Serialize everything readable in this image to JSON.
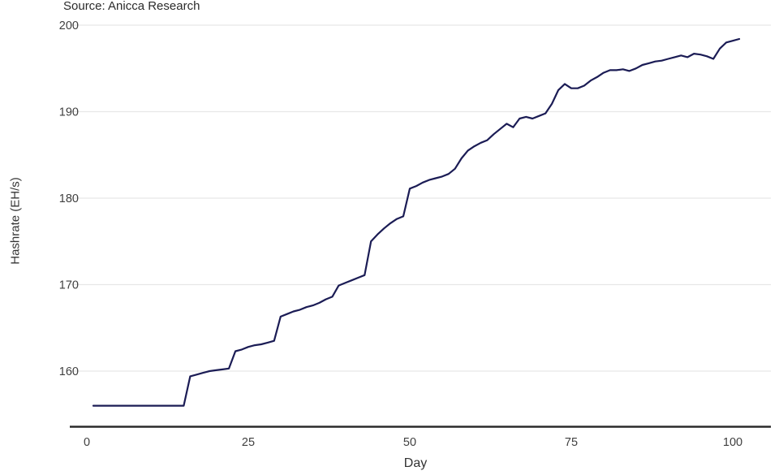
{
  "header": {
    "source_label": "Source: Anicca Research"
  },
  "colors": {
    "background": "#ffffff",
    "grid": "#e7e7e7",
    "axis_line": "#2b2b2b",
    "tick_text": "#404040",
    "line": "#1b1c55"
  },
  "chart_data": {
    "type": "line",
    "title": "",
    "xlabel": "Day",
    "ylabel": "Hashrate (EH/s)",
    "x_ticks": [
      0,
      25,
      50,
      75,
      100
    ],
    "y_ticks": [
      160,
      170,
      180,
      190,
      200
    ],
    "xlim": [
      0,
      100
    ],
    "ylim": [
      155,
      200
    ],
    "grid": "horizontal-only",
    "legend": "none",
    "points": [
      [
        1,
        156.0
      ],
      [
        15,
        156.0
      ],
      [
        16,
        159.4
      ],
      [
        17,
        159.6
      ],
      [
        18,
        159.8
      ],
      [
        19,
        160.0
      ],
      [
        20,
        160.1
      ],
      [
        21,
        160.2
      ],
      [
        22,
        160.3
      ],
      [
        23,
        162.3
      ],
      [
        24,
        162.5
      ],
      [
        25,
        162.8
      ],
      [
        26,
        163.0
      ],
      [
        27,
        163.1
      ],
      [
        28,
        163.3
      ],
      [
        29,
        163.5
      ],
      [
        30,
        166.3
      ],
      [
        31,
        166.6
      ],
      [
        32,
        166.9
      ],
      [
        33,
        167.1
      ],
      [
        34,
        167.4
      ],
      [
        35,
        167.6
      ],
      [
        36,
        167.9
      ],
      [
        37,
        168.3
      ],
      [
        38,
        168.6
      ],
      [
        39,
        169.9
      ],
      [
        40,
        170.2
      ],
      [
        41,
        170.5
      ],
      [
        42,
        170.8
      ],
      [
        43,
        171.1
      ],
      [
        44,
        175.0
      ],
      [
        45,
        175.8
      ],
      [
        46,
        176.5
      ],
      [
        47,
        177.1
      ],
      [
        48,
        177.6
      ],
      [
        49,
        177.9
      ],
      [
        50,
        181.1
      ],
      [
        51,
        181.4
      ],
      [
        52,
        181.8
      ],
      [
        53,
        182.1
      ],
      [
        54,
        182.3
      ],
      [
        55,
        182.5
      ],
      [
        56,
        182.8
      ],
      [
        57,
        183.4
      ],
      [
        58,
        184.6
      ],
      [
        59,
        185.5
      ],
      [
        60,
        186.0
      ],
      [
        61,
        186.4
      ],
      [
        62,
        186.7
      ],
      [
        63,
        187.4
      ],
      [
        64,
        188.0
      ],
      [
        65,
        188.6
      ],
      [
        66,
        188.2
      ],
      [
        67,
        189.2
      ],
      [
        68,
        189.4
      ],
      [
        69,
        189.2
      ],
      [
        70,
        189.5
      ],
      [
        71,
        189.8
      ],
      [
        72,
        190.9
      ],
      [
        73,
        192.5
      ],
      [
        74,
        193.2
      ],
      [
        75,
        192.7
      ],
      [
        76,
        192.7
      ],
      [
        77,
        193.0
      ],
      [
        78,
        193.6
      ],
      [
        79,
        194.0
      ],
      [
        80,
        194.5
      ],
      [
        81,
        194.8
      ],
      [
        82,
        194.8
      ],
      [
        83,
        194.9
      ],
      [
        84,
        194.7
      ],
      [
        85,
        195.0
      ],
      [
        86,
        195.4
      ],
      [
        87,
        195.6
      ],
      [
        88,
        195.8
      ],
      [
        89,
        195.9
      ],
      [
        90,
        196.1
      ],
      [
        91,
        196.3
      ],
      [
        92,
        196.5
      ],
      [
        93,
        196.3
      ],
      [
        94,
        196.7
      ],
      [
        95,
        196.6
      ],
      [
        96,
        196.4
      ],
      [
        97,
        196.1
      ],
      [
        98,
        197.3
      ],
      [
        99,
        198.0
      ],
      [
        100,
        198.2
      ],
      [
        101,
        198.4
      ]
    ]
  }
}
